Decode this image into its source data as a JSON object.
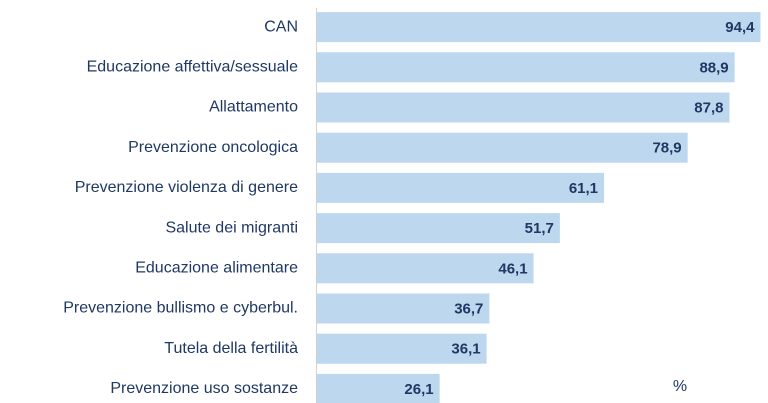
{
  "chart_data": {
    "type": "bar",
    "orientation": "horizontal",
    "categories": [
      "CAN",
      "Educazione affettiva/sessuale",
      "Allattamento",
      "Prevenzione oncologica",
      "Prevenzione violenza di genere",
      "Salute dei migranti",
      "Educazione alimentare",
      "Prevenzione bullismo e cyberbul.",
      "Tutela della fertilità",
      "Prevenzione uso sostanze"
    ],
    "values": [
      94.4,
      88.9,
      87.8,
      78.9,
      61.1,
      51.7,
      46.1,
      36.7,
      36.1,
      26.1
    ],
    "value_labels": [
      "94,4",
      "88,9",
      "87,8",
      "78,9",
      "61,1",
      "51,7",
      "46,1",
      "36,7",
      "36,1",
      "26,1"
    ],
    "color": "#bdd7ee",
    "xlim": [
      0,
      96
    ],
    "annotation": "%"
  }
}
